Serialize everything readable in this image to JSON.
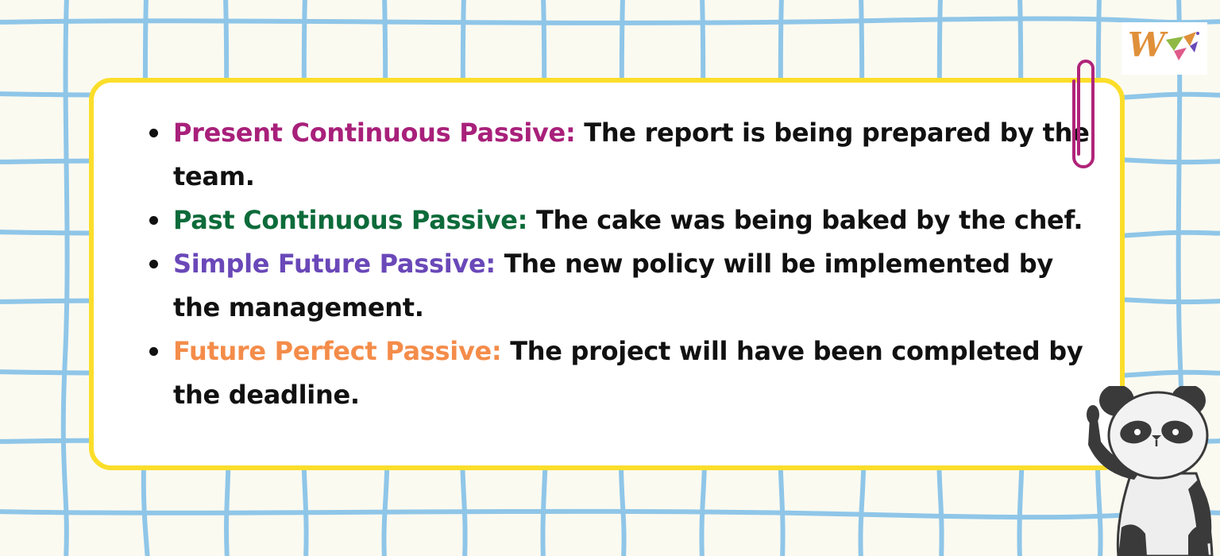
{
  "brand": {
    "logo_text": "W",
    "logo_colors": [
      "#e0903a",
      "#8fb944",
      "#e05a8a",
      "#6a4ab8"
    ]
  },
  "colors": {
    "background": "#fbfaf1",
    "grid_lines": "#8fc6e8",
    "card_border": "#fbde2b",
    "body_text": "#111111",
    "paperclip": "#b0247a"
  },
  "items": [
    {
      "term": "Present Continuous Passive:",
      "term_color": "#a8207a",
      "text": "The report is being prepared by the team."
    },
    {
      "term": "Past Continuous Passive:",
      "term_color": "#0d6b3a",
      "text": "The cake was being baked by the chef."
    },
    {
      "term": "Simple Future Passive:",
      "term_color": "#6a48b8",
      "text": "The new policy will be implemented by the management."
    },
    {
      "term": "Future Perfect Passive:",
      "term_color": "#f48c4a",
      "text": "The project will have been completed by the deadline."
    }
  ],
  "decorations": {
    "paperclip_icon": "paperclip-icon",
    "mascot_icon": "panda-icon"
  }
}
